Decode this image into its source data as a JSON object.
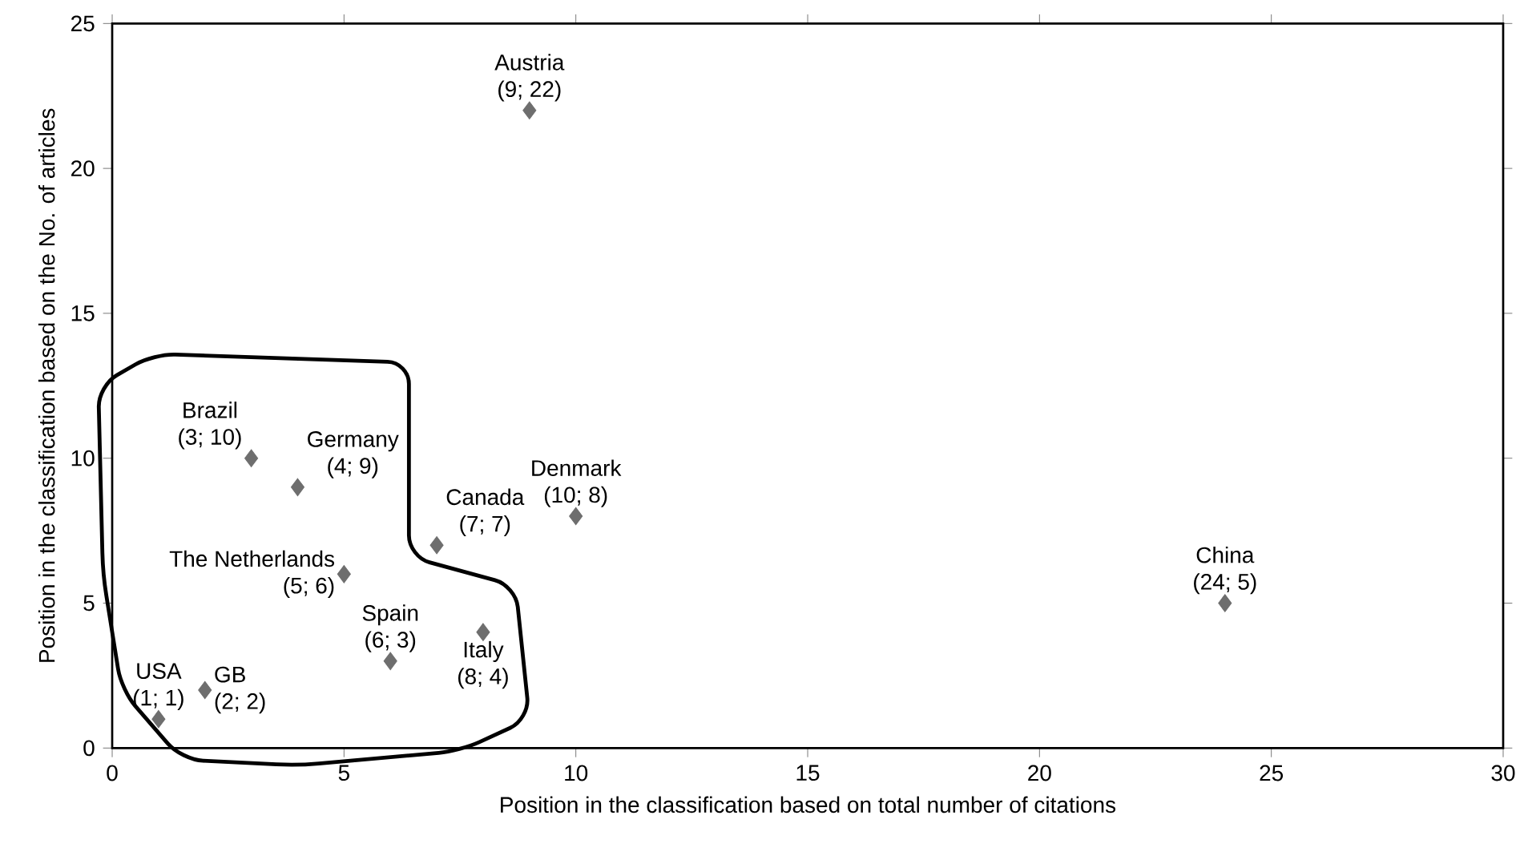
{
  "chart_data": {
    "type": "scatter",
    "xlabel": "Position in the classification based on total number of citations",
    "ylabel": "Position in the classification based on the No. of articles",
    "x": [
      1,
      2,
      3,
      4,
      5,
      6,
      7,
      8,
      9,
      10,
      24
    ],
    "values": [
      1,
      2,
      10,
      9,
      6,
      3,
      7,
      4,
      22,
      8,
      5
    ],
    "value_labels": [
      "(1; 1)",
      "(2; 2)",
      "(3; 10)",
      "(4; 9)",
      "(5; 6)",
      "(6; 3)",
      "(7; 7)",
      "(8; 4)",
      "(9; 22)",
      "(10; 8)",
      "(24; 5)"
    ],
    "annotations": [
      {
        "text": "USA",
        "x": 1,
        "y": 1
      },
      {
        "text": "GB",
        "x": 2,
        "y": 2
      },
      {
        "text": "Brazil",
        "x": 3,
        "y": 10
      },
      {
        "text": "Germany",
        "x": 4,
        "y": 9
      },
      {
        "text": "The Netherlands",
        "x": 5,
        "y": 6
      },
      {
        "text": "Spain",
        "x": 6,
        "y": 3
      },
      {
        "text": "Canada",
        "x": 7,
        "y": 7
      },
      {
        "text": "Italy",
        "x": 8,
        "y": 4
      },
      {
        "text": "Austria",
        "x": 9,
        "y": 22
      },
      {
        "text": "Denmark",
        "x": 10,
        "y": 8
      },
      {
        "text": "China",
        "x": 24,
        "y": 5
      }
    ],
    "color": "#6e6e6e",
    "marker": "diamond",
    "xlim": [
      0,
      30
    ],
    "xticks": [
      0,
      5,
      10,
      15,
      20,
      25,
      30
    ],
    "ylim": [
      0,
      25
    ],
    "yticks": [
      0,
      5,
      10,
      15,
      20,
      25
    ]
  }
}
